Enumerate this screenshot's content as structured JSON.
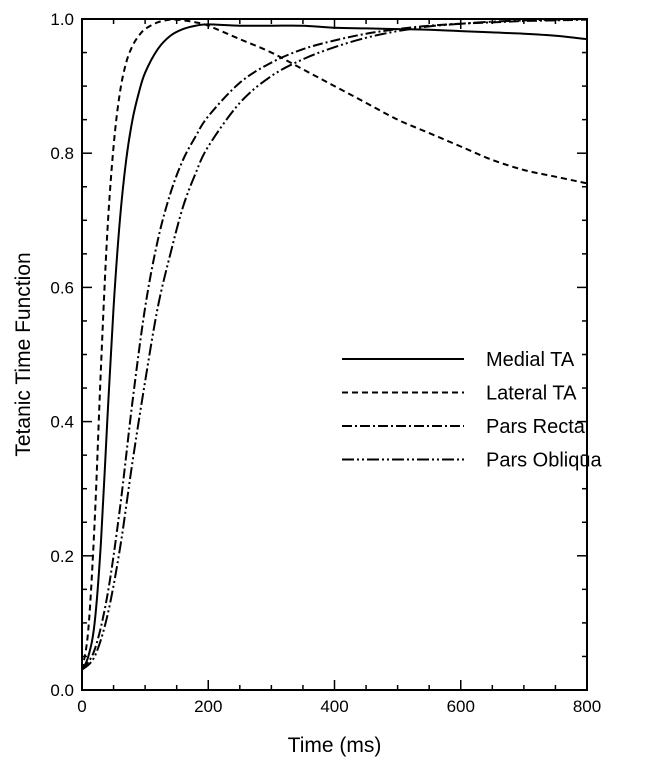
{
  "chart_data": {
    "type": "line",
    "title": "",
    "xlabel": "Time (ms)",
    "ylabel": "Tetanic Time Function",
    "xlim": [
      0,
      800
    ],
    "ylim": [
      0,
      1
    ],
    "xticks": [
      0,
      200,
      400,
      600,
      800
    ],
    "yticks": [
      0.0,
      0.2,
      0.4,
      0.6,
      0.8,
      1.0
    ],
    "xtick_labels": [
      "0",
      "200",
      "400",
      "600",
      "800"
    ],
    "ytick_labels": [
      "0.0",
      "0.2",
      "0.4",
      "0.6",
      "0.8",
      "1.0"
    ],
    "grid": false,
    "legend_position": "center-right",
    "series": [
      {
        "name": "Medial TA",
        "style": "solid",
        "x": [
          0,
          10,
          20,
          30,
          40,
          50,
          60,
          70,
          80,
          90,
          100,
          120,
          140,
          160,
          180,
          200,
          250,
          300,
          350,
          400,
          450,
          500,
          550,
          600,
          650,
          700,
          750,
          800
        ],
        "y": [
          0.03,
          0.05,
          0.1,
          0.22,
          0.4,
          0.57,
          0.7,
          0.79,
          0.85,
          0.89,
          0.92,
          0.955,
          0.975,
          0.985,
          0.99,
          0.992,
          0.99,
          0.99,
          0.99,
          0.987,
          0.986,
          0.985,
          0.984,
          0.982,
          0.98,
          0.978,
          0.975,
          0.97
        ]
      },
      {
        "name": "Lateral TA",
        "style": "dashed",
        "x": [
          0,
          10,
          20,
          30,
          40,
          50,
          60,
          70,
          80,
          90,
          100,
          120,
          140,
          160,
          180,
          200,
          250,
          300,
          350,
          400,
          450,
          500,
          550,
          600,
          650,
          700,
          750,
          800
        ],
        "y": [
          0.03,
          0.09,
          0.25,
          0.48,
          0.68,
          0.81,
          0.89,
          0.935,
          0.96,
          0.975,
          0.985,
          0.995,
          0.999,
          0.998,
          0.995,
          0.99,
          0.97,
          0.95,
          0.925,
          0.9,
          0.875,
          0.85,
          0.83,
          0.81,
          0.79,
          0.775,
          0.765,
          0.755
        ]
      },
      {
        "name": "Pars Recta",
        "style": "dash-dot",
        "x": [
          0,
          20,
          40,
          60,
          80,
          100,
          120,
          140,
          160,
          180,
          200,
          250,
          300,
          350,
          400,
          450,
          500,
          550,
          600,
          650,
          700,
          750,
          800
        ],
        "y": [
          0.03,
          0.06,
          0.14,
          0.27,
          0.43,
          0.57,
          0.67,
          0.74,
          0.79,
          0.825,
          0.855,
          0.905,
          0.935,
          0.955,
          0.968,
          0.978,
          0.985,
          0.99,
          0.993,
          0.995,
          0.997,
          0.998,
          0.999
        ]
      },
      {
        "name": "Pars Obliqua",
        "style": "dash-dot-dot",
        "x": [
          0,
          20,
          40,
          60,
          80,
          100,
          120,
          140,
          160,
          180,
          200,
          250,
          300,
          350,
          400,
          450,
          500,
          550,
          600,
          650,
          700,
          750,
          800
        ],
        "y": [
          0.03,
          0.05,
          0.11,
          0.21,
          0.34,
          0.46,
          0.57,
          0.65,
          0.72,
          0.77,
          0.81,
          0.875,
          0.915,
          0.94,
          0.958,
          0.972,
          0.982,
          0.989,
          0.993,
          0.996,
          0.998,
          0.999,
          1.0
        ]
      }
    ]
  }
}
